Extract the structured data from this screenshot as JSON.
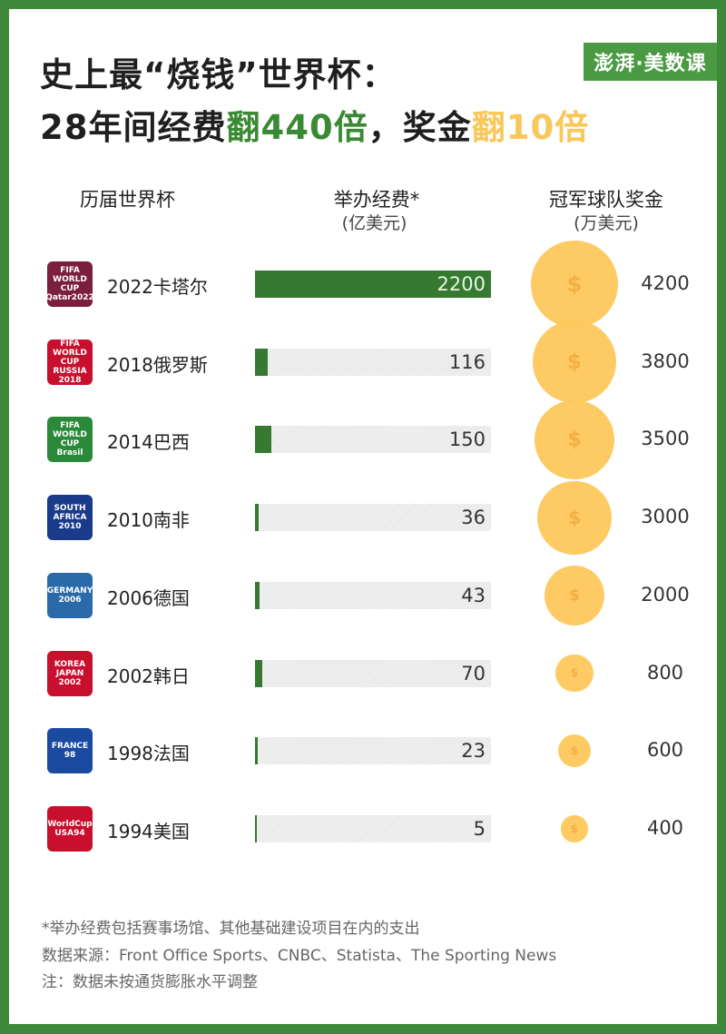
{
  "title": {
    "line1": "史上最“烧钱”世界杯：",
    "line2_a": "28年间经费",
    "line2_b": "翻440倍",
    "line2_c": "，奖金",
    "line2_d": "翻10倍"
  },
  "brand": "澎湃·美数课",
  "colors": {
    "bar": "#357a30",
    "coin": "#fdc85c",
    "border": "#3f8a3a",
    "accent_green": "#3a8a34",
    "accent_yellow": "#f9c75a"
  },
  "headers": {
    "col1": "历届世界杯",
    "col2": "举办经费*",
    "col2_unit": "(亿美元)",
    "col3": "冠军球队奖金",
    "col3_unit": "(万美元)"
  },
  "chart_data": {
    "type": "bar",
    "categories": [
      "2022卡塔尔",
      "2018俄罗斯",
      "2014巴西",
      "2010南非",
      "2006德国",
      "2002韩日",
      "1998法国",
      "1994美国"
    ],
    "series": [
      {
        "name": "举办经费*(亿美元)",
        "values": [
          2200,
          116,
          150,
          36,
          43,
          70,
          23,
          5
        ]
      },
      {
        "name": "冠军球队奖金(万美元)",
        "values": [
          4200,
          3800,
          3500,
          3000,
          2000,
          800,
          600,
          400
        ]
      }
    ],
    "logo_labels": [
      "FIFA WORLD CUP Qatar2022",
      "FIFA WORLD CUP RUSSIA 2018",
      "FIFA WORLD CUP Brasil",
      "SOUTH AFRICA 2010",
      "GERMANY 2006",
      "KOREA JAPAN 2002",
      "FRANCE 98",
      "WorldCup USA94"
    ]
  },
  "notes": [
    "*举办经费包括赛事场馆、其他基础建设项目在内的支出",
    "数据来源：Front Office Sports、CNBC、Statista、The Sporting News",
    "注：数据未按通货膨胀水平调整"
  ]
}
